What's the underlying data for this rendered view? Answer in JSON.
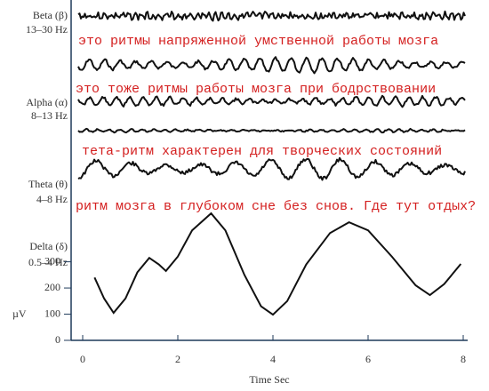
{
  "chart_data": {
    "type": "line",
    "band_labels": [
      [
        "Beta (β)",
        "13–30 Hz"
      ],
      [
        "Alpha (α)",
        "8–13 Hz"
      ],
      [
        "Theta (θ)",
        "4–8 Hz"
      ],
      [
        "Delta (δ)",
        "0.5–4 Hz"
      ]
    ],
    "annotations": [
      "это ритмы напряженной умственной работы мозга",
      "это тоже ритмы работы мозга при бодрствовании",
      "тета-ритм характерен для творческих состояний",
      "ритм мозга в глубоком сне без снов. Где тут отдых?"
    ],
    "x_label": "Time Sec",
    "y_label": "µV",
    "x": [
      0.25,
      0.45,
      0.65,
      0.9,
      1.15,
      1.4,
      1.6,
      1.75,
      2.0,
      2.3,
      2.7,
      3.0,
      3.4,
      3.75,
      4.0,
      4.3,
      4.7,
      5.2,
      5.6,
      6.0,
      6.5,
      7.0,
      7.3,
      7.6,
      7.95
    ],
    "series": [
      {
        "name": "Delta",
        "color": "#111111",
        "values": [
          240,
          160,
          105,
          160,
          260,
          315,
          290,
          265,
          320,
          420,
          485,
          420,
          250,
          130,
          98,
          150,
          290,
          410,
          451,
          420,
          320,
          210,
          173,
          215,
          292
        ]
      }
    ],
    "xlim": [
      0,
      8
    ],
    "xticks": [
      0,
      2,
      4,
      6,
      8
    ],
    "ylim": [
      0,
      1300
    ],
    "yticks": [
      0,
      100,
      200,
      300
    ]
  }
}
